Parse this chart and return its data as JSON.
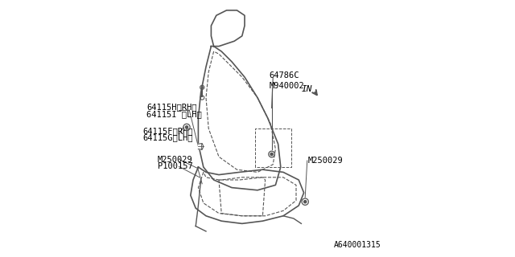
{
  "background_color": "#ffffff",
  "diagram_id": "A640001315",
  "font_size": 7.5,
  "line_color": "#555555",
  "text_color": "#000000",
  "label_64786C": "64786C",
  "label_M940002": "M940002",
  "label_64115H": "64115H〈RH〉",
  "label_64115I": "64115I 〈LH〉",
  "label_64115F": "64115F〈RH〉",
  "label_64115G": "64115G〈LH〉",
  "label_M250029": "M250029",
  "label_P100157": "P100157",
  "label_IN": "IN",
  "diagram_code": "A640001315"
}
